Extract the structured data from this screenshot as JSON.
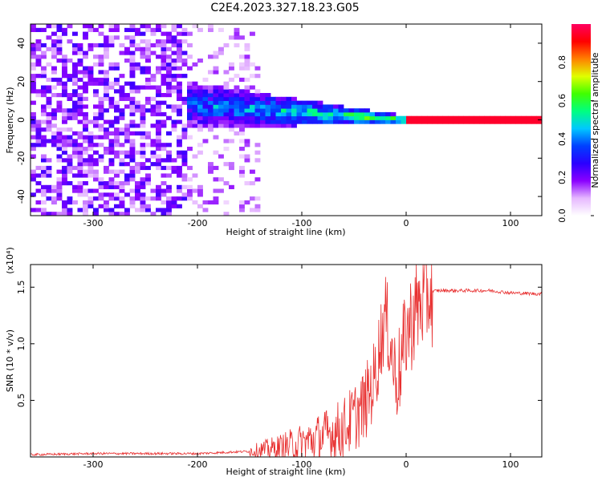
{
  "title": "C2E4.2023.327.18.23.G05",
  "chart_data": [
    {
      "type": "heatmap",
      "xlabel": "Height of straight line (km)",
      "ylabel": "Frequency (Hz)",
      "xlim": [
        -360,
        130
      ],
      "ylim": [
        -50,
        50
      ],
      "xticks": [
        -300,
        -200,
        -100,
        0,
        100
      ],
      "yticks": [
        -40,
        -20,
        0,
        20,
        40
      ],
      "colorbar": {
        "label": "Normalized spectral amplitude",
        "range": [
          0,
          1
        ],
        "ticks": [
          "0.0",
          "0.2",
          "0.4",
          "0.6",
          "0.8"
        ],
        "colors": [
          "#ffffff",
          "#e6b8ff",
          "#8a00ff",
          "#2a00ff",
          "#0040ff",
          "#00c8ff",
          "#00ff80",
          "#40ff00",
          "#e0ff00",
          "#ff8000",
          "#ff0000",
          "#ff0060"
        ]
      },
      "features": {
        "noise_region_x": [
          -360,
          -210
        ],
        "sparse_region_x": [
          -210,
          -140
        ],
        "band_region_x": [
          -210,
          0
        ],
        "band_center_y": [
          8,
          0
        ],
        "band_halfwidth_y": [
          12,
          2
        ],
        "line_x": [
          0,
          130
        ],
        "line_y": 0
      }
    },
    {
      "type": "line",
      "xlabel": "Height of straight line (km)",
      "ylabel": "SNR (10 * v/v)",
      "multiplier_label": "(x10⁴)",
      "xlim": [
        -360,
        130
      ],
      "ylim": [
        0,
        1.7
      ],
      "xticks": [
        -300,
        -200,
        -100,
        0,
        100
      ],
      "yticks": [
        "0.5",
        "1.0",
        "1.5"
      ],
      "color": "#e83030",
      "series": [
        {
          "x": [
            -360,
            -300,
            -250,
            -200,
            -150,
            -120,
            -100,
            -80,
            -60,
            -50,
            -40,
            -30,
            -25,
            -20,
            -15,
            -10,
            -5,
            0,
            10,
            20,
            30,
            50,
            80,
            100,
            130
          ],
          "y": [
            0.02,
            0.03,
            0.03,
            0.03,
            0.05,
            0.08,
            0.12,
            0.18,
            0.25,
            0.35,
            0.45,
            0.7,
            1.0,
            1.25,
            1.0,
            0.7,
            0.8,
            1.1,
            1.3,
            1.45,
            1.47,
            1.47,
            1.47,
            1.45,
            1.44
          ]
        }
      ]
    }
  ]
}
